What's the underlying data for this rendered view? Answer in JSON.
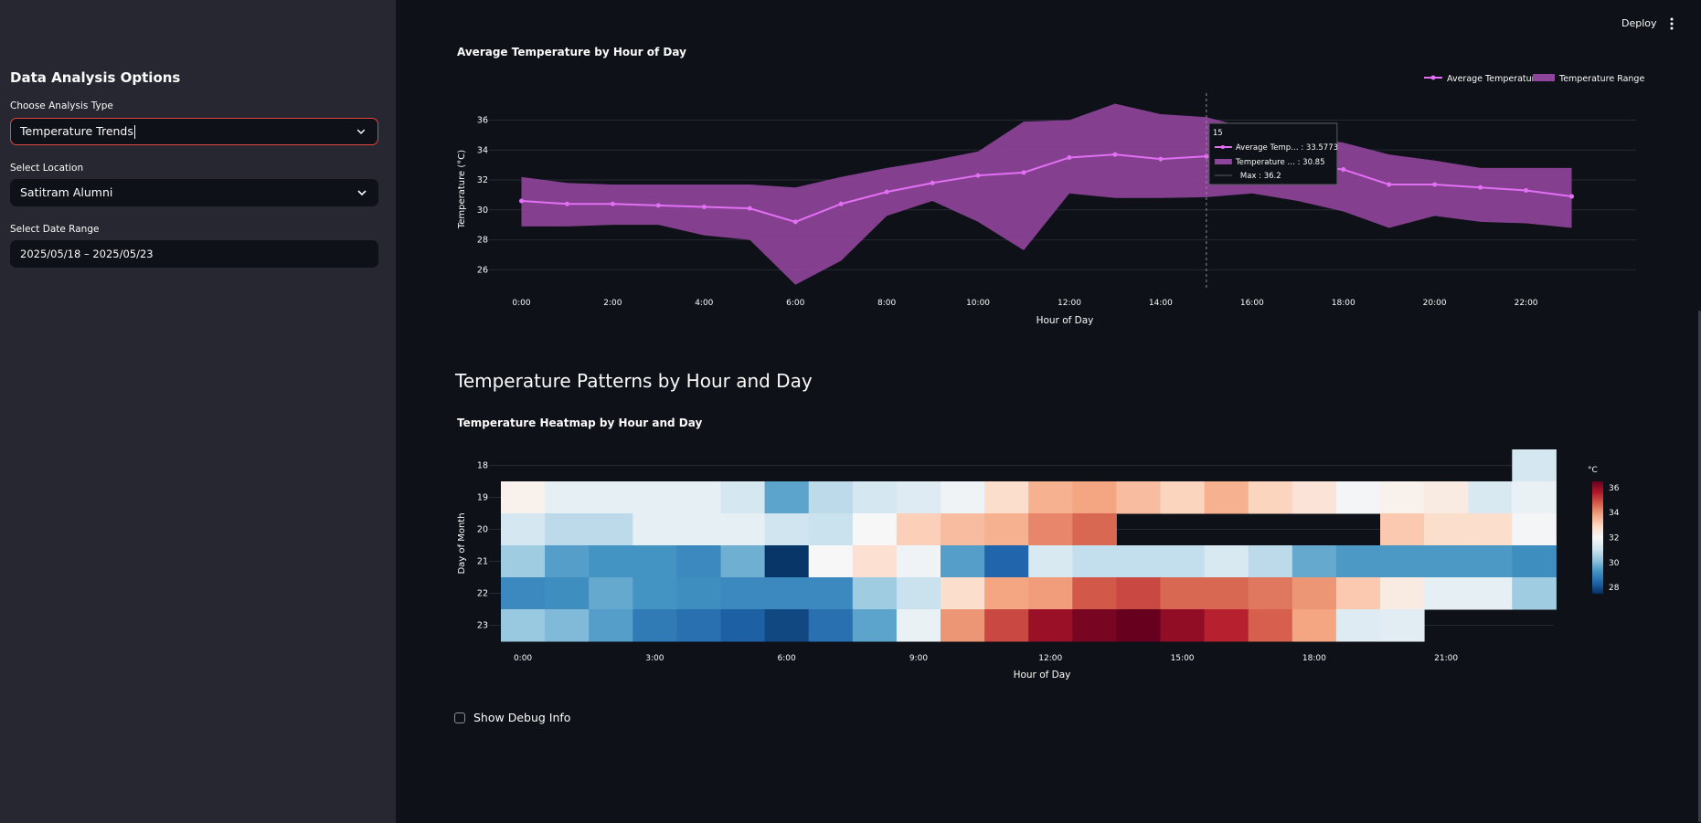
{
  "sidebar": {
    "title": "Data Analysis Options",
    "analysis_label": "Choose Analysis Type",
    "analysis_value": "Temperature Trends",
    "location_label": "Select Location",
    "location_value": "Satitram Alumni",
    "date_label": "Select Date Range",
    "date_value": "2025/05/18 – 2025/05/23"
  },
  "header": {
    "deploy_label": "Deploy",
    "menu_icon": "kebab-menu-icon"
  },
  "line_chart": {
    "title": "Average Temperature by Hour of Day",
    "legend_avg": "Average Temperature",
    "legend_range": "Temperature Range",
    "tooltip": {
      "hour": "15",
      "avg": "Average Temp… : 33.5773",
      "min": "Temperature … : 30.85",
      "max": "Max : 36.2"
    }
  },
  "section_title": "Temperature Patterns by Hour and Day",
  "heatmap_title": "Temperature Heatmap by Hour and Day",
  "debug_label": "Show Debug Info",
  "colors": {
    "accent": "#e0473f",
    "line": "#e26ff4",
    "band": "#8e449a",
    "sidebar": "#262730",
    "main": "#0e1117"
  },
  "chart_data": [
    {
      "type": "line",
      "xlabel": "Hour of Day",
      "ylabel": "Temperature (°C)",
      "x": [
        0,
        1,
        2,
        3,
        4,
        5,
        6,
        7,
        8,
        9,
        10,
        11,
        12,
        13,
        14,
        15,
        16,
        17,
        18,
        19,
        20,
        21,
        22,
        23
      ],
      "xtick_labels": [
        "0:00",
        "2:00",
        "4:00",
        "6:00",
        "8:00",
        "10:00",
        "12:00",
        "14:00",
        "16:00",
        "18:00",
        "20:00",
        "22:00"
      ],
      "yticks": [
        26,
        28,
        30,
        32,
        34,
        36
      ],
      "ylim": [
        24.8,
        37.8
      ],
      "series": [
        {
          "name": "Average Temperature",
          "values": [
            30.6,
            30.4,
            30.4,
            30.3,
            30.2,
            30.1,
            29.2,
            30.4,
            31.2,
            31.8,
            32.3,
            32.5,
            33.5,
            33.7,
            33.4,
            33.58,
            33.4,
            33.0,
            32.7,
            31.7,
            31.7,
            31.5,
            31.3,
            30.9
          ]
        },
        {
          "name": "Temperature Range max",
          "values": [
            32.2,
            31.8,
            31.7,
            31.7,
            31.7,
            31.7,
            31.5,
            32.2,
            32.8,
            33.3,
            33.9,
            35.9,
            36.0,
            37.1,
            36.4,
            36.2,
            35.4,
            34.9,
            34.5,
            33.7,
            33.3,
            32.8,
            32.8,
            32.8
          ]
        },
        {
          "name": "Temperature Range min",
          "values": [
            28.9,
            28.9,
            29.0,
            29.0,
            28.3,
            28.0,
            25.0,
            26.6,
            29.6,
            30.6,
            29.2,
            27.3,
            31.1,
            30.8,
            30.8,
            30.85,
            31.1,
            30.6,
            29.9,
            28.8,
            29.6,
            29.2,
            29.1,
            28.8
          ]
        }
      ],
      "legend": "top-right",
      "grid": true
    },
    {
      "type": "heatmap",
      "xlabel": "Hour of Day",
      "ylabel": "Day of Month",
      "xtick_labels": [
        "0:00",
        "3:00",
        "6:00",
        "9:00",
        "12:00",
        "15:00",
        "18:00",
        "21:00"
      ],
      "hours": [
        0,
        1,
        2,
        3,
        4,
        5,
        6,
        7,
        8,
        9,
        10,
        11,
        12,
        13,
        14,
        15,
        16,
        17,
        18,
        19,
        20,
        21,
        22,
        23
      ],
      "days": [
        18,
        19,
        20,
        21,
        22,
        23
      ],
      "colorbar_label": "°C",
      "colorbar_ticks": [
        28,
        30,
        32,
        34,
        36
      ],
      "zrange": [
        27.5,
        36.5
      ],
      "values": [
        [
          null,
          null,
          null,
          null,
          null,
          null,
          null,
          null,
          null,
          null,
          null,
          null,
          null,
          null,
          null,
          null,
          null,
          null,
          null,
          null,
          null,
          null,
          null,
          31.2
        ],
        [
          32.2,
          31.6,
          31.6,
          31.6,
          31.6,
          31.2,
          29.6,
          30.8,
          31.2,
          31.4,
          31.8,
          32.8,
          33.6,
          33.8,
          33.4,
          33.0,
          33.6,
          33.0,
          32.6,
          31.9,
          32.2,
          32.4,
          31.3,
          31.7
        ],
        [
          31.2,
          30.8,
          30.8,
          31.6,
          31.6,
          31.6,
          31.1,
          31.0,
          32.0,
          33.1,
          33.4,
          33.6,
          34.2,
          34.6,
          null,
          null,
          null,
          null,
          null,
          null,
          33.2,
          32.8,
          32.8,
          31.9
        ],
        [
          30.4,
          29.5,
          29.3,
          29.3,
          29.1,
          29.8,
          27.6,
          32.0,
          32.7,
          31.8,
          29.5,
          28.4,
          31.3,
          30.9,
          30.9,
          30.9,
          31.3,
          30.8,
          29.7,
          29.4,
          29.4,
          29.4,
          29.4,
          29.2
        ],
        [
          29.1,
          29.2,
          29.7,
          29.3,
          29.2,
          29.1,
          29.1,
          29.1,
          30.4,
          31.0,
          32.8,
          33.8,
          33.9,
          34.8,
          35.0,
          34.6,
          34.6,
          34.4,
          34.0,
          33.2,
          32.4,
          31.6,
          31.6,
          30.4
        ],
        [
          30.3,
          30.0,
          29.5,
          28.8,
          28.6,
          28.3,
          27.9,
          28.6,
          29.6,
          31.7,
          34.0,
          35.0,
          35.9,
          36.3,
          36.5,
          36.0,
          35.5,
          34.7,
          33.8,
          31.4,
          31.5,
          null,
          null,
          null
        ]
      ]
    }
  ]
}
